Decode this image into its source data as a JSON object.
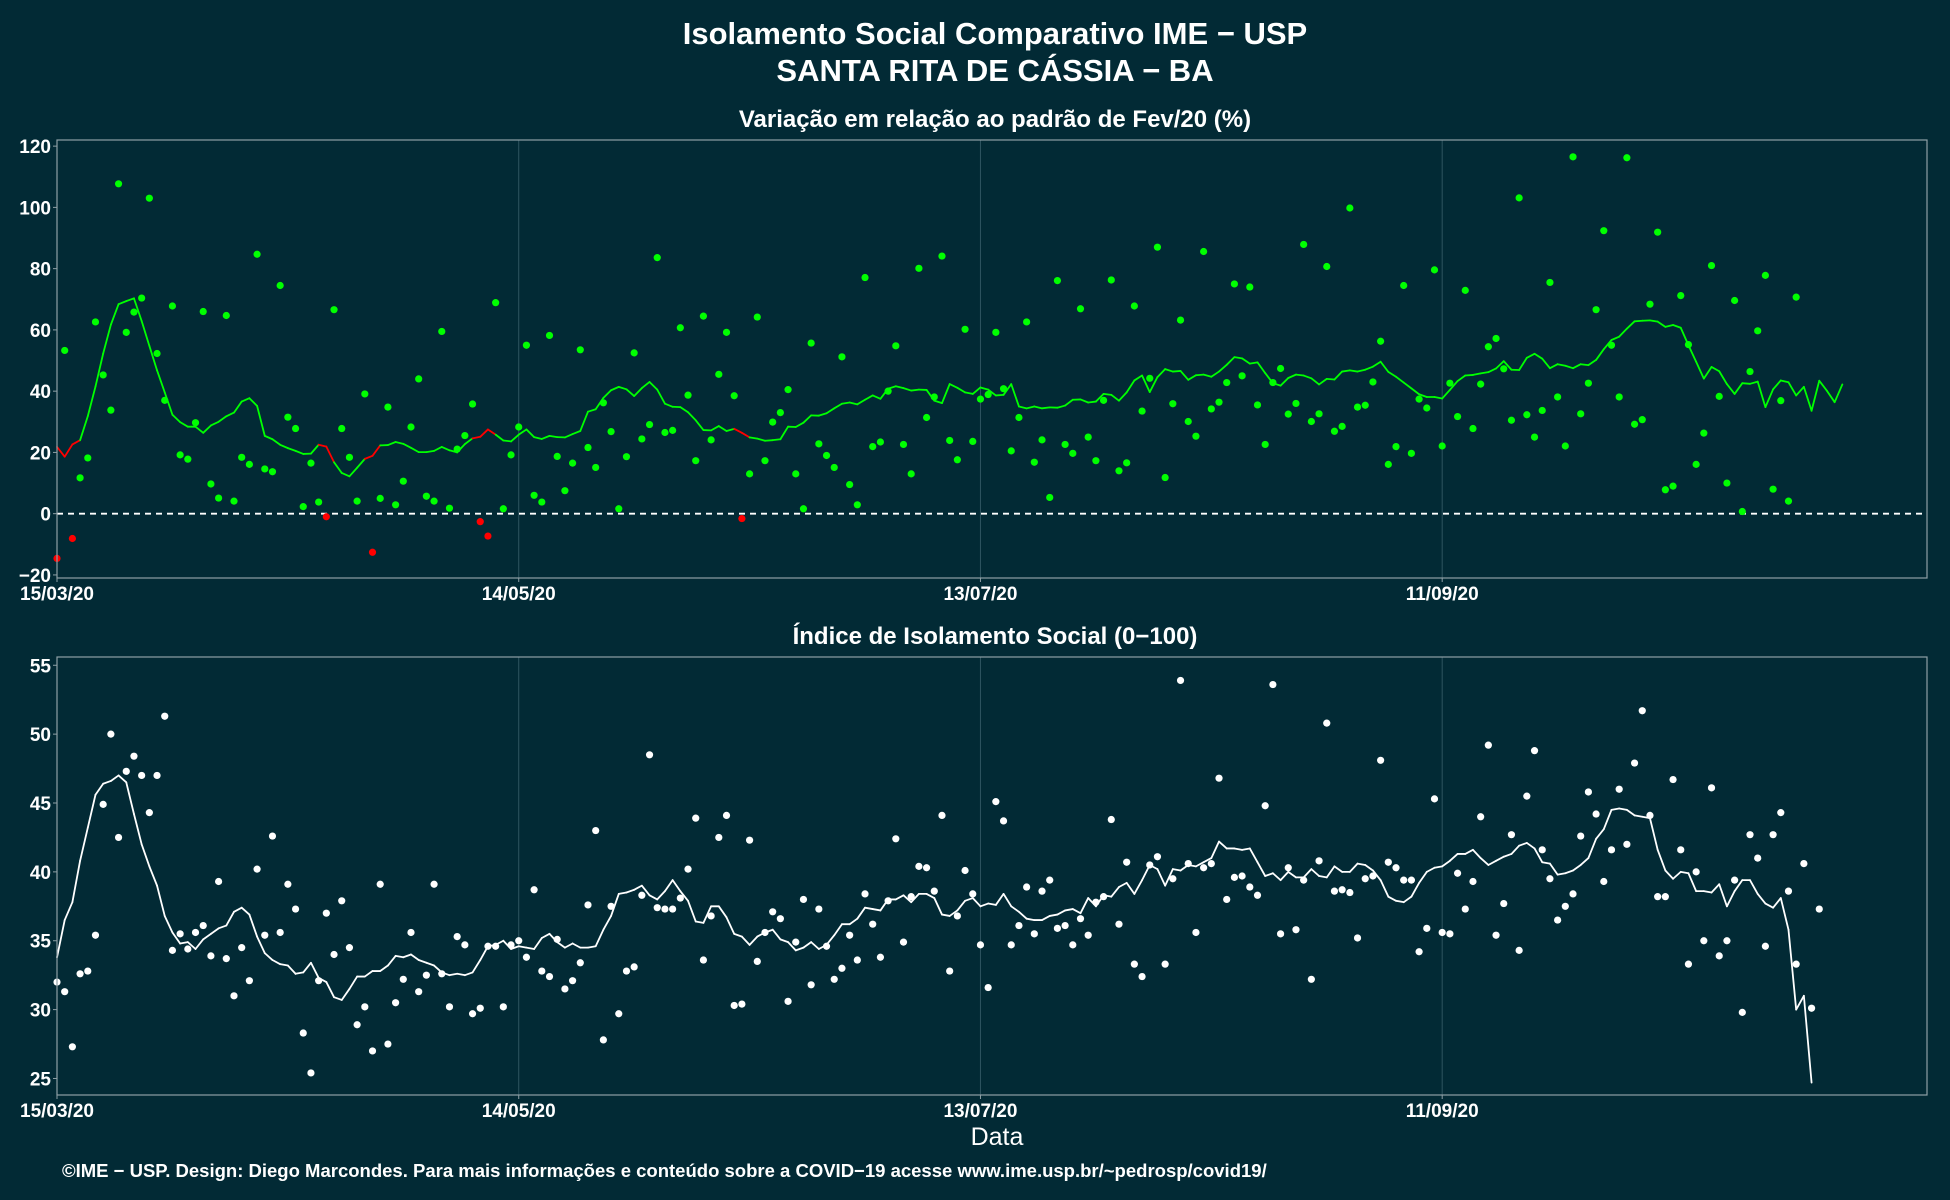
{
  "header": {
    "title_line1": "Isolamento Social Comparativo IME − USP",
    "title_line2": "SANTA RITA DE CÁSSIA − BA"
  },
  "footer": {
    "credit": "©IME − USP. Design: Diego Marcondes. Para mais informações e conteúdo sobre a COVID−19 acesse www.ime.usp.br/~pedrosp/covid19/"
  },
  "colors": {
    "background": "#022a35",
    "positive": "#00ff00",
    "negative": "#ff0000",
    "index": "#ffffff",
    "grid": "#2f5560"
  },
  "chart_data": [
    {
      "type": "scatter",
      "title": "Variação em relação ao padrão de Fev/20 (%)",
      "xlabel": "",
      "ylabel": "",
      "x_start": "15/03/20",
      "x_count": 244,
      "x_ticks": [
        "15/03/20",
        "14/05/20",
        "13/07/20",
        "11/09/20"
      ],
      "ylim": [
        -21,
        122
      ],
      "y_ticks": [
        -20,
        0,
        20,
        40,
        60,
        80,
        100,
        120
      ],
      "reference_line": 0,
      "grid": true,
      "series": [
        {
          "kind": "daily-points",
          "values": [
            -14.6,
            53.3,
            -8.1,
            11.7,
            18.2,
            62.6,
            45.3,
            33.8,
            107.7,
            59.2,
            65.8,
            70.4,
            103.0,
            52.3,
            37.0,
            67.8,
            19.2,
            17.8,
            29.7,
            66.0,
            9.7,
            5.1,
            64.7,
            4.1,
            18.4,
            16.1,
            84.7,
            14.6,
            13.7,
            74.5,
            31.5,
            27.8,
            2.3,
            16.5,
            3.8,
            -1.0,
            66.6,
            27.8,
            18.4,
            4.1,
            39.1,
            -12.6,
            5.0,
            34.8,
            2.9,
            10.6,
            28.3,
            44.0,
            5.7,
            4.1,
            59.5,
            1.8,
            21.1,
            25.5,
            35.8,
            -2.6,
            -7.3,
            68.9,
            1.6,
            19.2,
            28.3,
            55.0,
            6.0,
            3.8,
            58.2,
            18.7,
            7.5,
            16.5,
            53.5,
            21.6,
            15.1,
            36.2,
            26.8,
            1.6,
            18.6,
            52.5,
            24.4,
            29.1,
            83.6,
            26.5,
            27.2,
            60.7,
            38.7,
            17.3,
            64.5,
            24.1,
            45.5,
            59.2,
            38.5,
            -1.6,
            13.0,
            64.2,
            17.3,
            29.9,
            33.0,
            40.5,
            13.0,
            1.6,
            55.7,
            22.8,
            19.0,
            15.1,
            51.2,
            9.5,
            2.9,
            77.1,
            21.9,
            23.4,
            40.0,
            54.8,
            22.6,
            13.0,
            80.1,
            31.4,
            38.1,
            84.1,
            23.9,
            17.6,
            60.2,
            23.6,
            37.4,
            38.9,
            59.2,
            40.8,
            20.5,
            31.4,
            62.6,
            16.8,
            24.1,
            5.3,
            76.1,
            22.6,
            19.7,
            66.9,
            25.0,
            17.3,
            37.0,
            76.3,
            14.0,
            16.6,
            67.8,
            33.5,
            44.2,
            87.0,
            11.8,
            35.9,
            63.2,
            30.1,
            25.3,
            85.6,
            34.2,
            36.4,
            42.8,
            75.0,
            45.0,
            74.0,
            35.5,
            22.6,
            42.8,
            47.4,
            32.5,
            36.0,
            87.9,
            30.1,
            32.6,
            80.7,
            26.9,
            28.5,
            99.8,
            34.8,
            35.4,
            43.0,
            56.3,
            16.1,
            21.9,
            74.5,
            19.7,
            37.4,
            34.5,
            79.6,
            22.1,
            42.6,
            31.7,
            72.9,
            27.8,
            42.3,
            54.5,
            57.2,
            47.3,
            30.5,
            103.1,
            32.3,
            25.0,
            33.7,
            75.5,
            38.1,
            22.1,
            116.5,
            32.6,
            42.6,
            66.6,
            92.4,
            55.0,
            38.1,
            116.2,
            29.2,
            30.7,
            68.4,
            91.9,
            7.8,
            9.0,
            71.2,
            55.2,
            16.1,
            26.3,
            81.0,
            38.3,
            10.0,
            69.6,
            0.7,
            46.4,
            59.7,
            77.8,
            8.0,
            36.9,
            4.1,
            70.7
          ],
          "note": "points below 0 drawn red, others green"
        },
        {
          "kind": "moving-average",
          "values": [
            21.8,
            18.6,
            22.6,
            24.0,
            31.8,
            41.5,
            52.3,
            61.7,
            68.4,
            69.4,
            70.3,
            62.9,
            54.8,
            46.8,
            39.6,
            32.3,
            29.9,
            28.4,
            28.4,
            26.4,
            28.8,
            30.0,
            31.8,
            33.0,
            36.6,
            37.7,
            35.2,
            25.4,
            24.3,
            22.5,
            21.4,
            20.5,
            19.5,
            19.6,
            22.5,
            21.9,
            16.8,
            13.3,
            12.2,
            15.0,
            17.9,
            18.9,
            22.3,
            22.4,
            23.4,
            22.8,
            21.5,
            20.1,
            20.1,
            20.5,
            21.8,
            20.7,
            20.0,
            22.7,
            24.6,
            25.1,
            27.5,
            25.8,
            23.9,
            23.6,
            25.8,
            27.5,
            25.0,
            24.4,
            25.4,
            25.0,
            24.9,
            26.0,
            27.0,
            33.3,
            34.1,
            37.8,
            40.3,
            41.4,
            40.6,
            38.4,
            41.0,
            43.0,
            40.5,
            35.9,
            34.9,
            34.8,
            33.1,
            30.5,
            27.3,
            27.2,
            28.6,
            27.0,
            27.7,
            26.4,
            24.9,
            24.5,
            23.8,
            24.0,
            24.3,
            28.4,
            28.3,
            29.7,
            32.1,
            32.0,
            32.8,
            34.4,
            35.9,
            36.3,
            35.7,
            37.2,
            38.6,
            37.5,
            40.8,
            41.6,
            41.0,
            40.2,
            40.5,
            40.4,
            36.9,
            36.1,
            42.3,
            41.1,
            39.6,
            39.1,
            41.2,
            40.5,
            38.6,
            38.8,
            42.3,
            35.0,
            34.4,
            35.0,
            34.4,
            34.7,
            34.6,
            35.3,
            37.2,
            37.3,
            36.3,
            36.6,
            39.1,
            38.8,
            36.9,
            39.6,
            43.5,
            45.1,
            39.7,
            44.6,
            47.2,
            46.4,
            46.6,
            43.7,
            45.2,
            45.4,
            44.7,
            46.4,
            48.6,
            51.1,
            50.7,
            49.0,
            49.4,
            45.9,
            42.6,
            41.8,
            44.3,
            45.4,
            45.1,
            44.2,
            42.2,
            44.0,
            43.8,
            46.4,
            46.8,
            46.4,
            47.0,
            48.0,
            49.6,
            46.3,
            44.7,
            42.8,
            40.9,
            39.0,
            38.1,
            38.1,
            37.6,
            40.4,
            43.3,
            45.1,
            45.3,
            45.8,
            46.2,
            47.4,
            49.8,
            47.0,
            46.9,
            50.9,
            52.2,
            50.6,
            47.5,
            48.8,
            48.3,
            47.5,
            48.8,
            48.5,
            50.2,
            53.7,
            56.7,
            57.8,
            60.4,
            62.8,
            63.0,
            63.1,
            62.7,
            61.0,
            61.6,
            60.7,
            55.0,
            49.6,
            44.1,
            47.9,
            46.5,
            42.3,
            39.1,
            42.6,
            42.4,
            43.1,
            34.8,
            40.6,
            43.5,
            42.9,
            38.6,
            41.4,
            33.6,
            43.4,
            40.1,
            36.4,
            42.2
          ],
          "note": "7-day average; red segments where daily below 0"
        }
      ]
    },
    {
      "type": "scatter",
      "title": "Índice de Isolamento Social (0−100)",
      "xlabel": "Data",
      "ylabel": "",
      "x_start": "15/03/20",
      "x_count": 244,
      "x_ticks": [
        "15/03/20",
        "14/05/20",
        "13/07/20",
        "11/09/20"
      ],
      "ylim": [
        23.8,
        55.6
      ],
      "y_ticks": [
        25,
        30,
        35,
        40,
        45,
        50,
        55
      ],
      "grid": true,
      "series": [
        {
          "kind": "daily-points",
          "values": [
            32.0,
            31.3,
            27.3,
            32.6,
            32.8,
            35.4,
            44.9,
            50.0,
            42.5,
            47.3,
            48.4,
            47.0,
            44.3,
            47.0,
            51.3,
            34.3,
            35.5,
            34.4,
            35.6,
            36.1,
            33.9,
            39.3,
            33.7,
            31.0,
            34.5,
            32.1,
            40.2,
            35.4,
            42.6,
            35.6,
            39.1,
            37.3,
            28.3,
            25.4,
            32.1,
            37.0,
            34.0,
            37.9,
            34.5,
            28.9,
            30.2,
            27.0,
            39.1,
            27.5,
            30.5,
            32.2,
            35.6,
            31.3,
            32.5,
            39.1,
            32.6,
            30.2,
            35.3,
            34.7,
            29.7,
            30.1,
            34.6,
            34.6,
            30.2,
            34.7,
            35.0,
            33.8,
            38.7,
            32.8,
            32.4,
            35.1,
            31.5,
            32.1,
            33.4,
            37.6,
            43.0,
            27.8,
            37.5,
            29.7,
            32.8,
            33.1,
            38.3,
            48.5,
            37.4,
            37.3,
            37.3,
            38.1,
            40.2,
            43.9,
            33.6,
            36.8,
            42.5,
            44.1,
            30.3,
            30.4,
            42.3,
            33.5,
            35.6,
            37.1,
            36.6,
            30.6,
            34.9,
            38.0,
            31.8,
            37.3,
            34.6,
            32.2,
            33.0,
            35.4,
            33.6,
            38.4,
            36.2,
            33.8,
            37.9,
            42.4,
            34.9,
            38.2,
            40.4,
            40.3,
            38.6,
            44.1,
            32.8,
            36.8,
            40.1,
            38.4,
            34.7,
            31.6,
            45.1,
            43.7,
            34.7,
            36.1,
            38.9,
            35.5,
            38.6,
            39.4,
            35.9,
            36.1,
            34.7,
            36.6,
            35.4,
            37.8,
            38.2,
            43.8,
            36.2,
            40.7,
            33.3,
            32.4,
            40.5,
            41.1,
            33.3,
            39.5,
            53.9,
            40.6,
            35.6,
            40.3,
            40.6,
            46.8,
            38.0,
            39.6,
            39.7,
            38.9,
            38.3,
            44.8,
            53.6,
            35.5,
            40.3,
            35.8,
            39.4,
            32.2,
            40.8,
            50.8,
            38.6,
            38.7,
            38.5,
            35.2,
            39.5,
            39.7,
            48.1,
            40.7,
            40.3,
            39.4,
            39.4,
            34.2,
            35.9,
            45.3,
            35.6,
            35.5,
            39.9,
            37.3,
            39.3,
            44.0,
            49.2,
            35.4,
            37.7,
            42.7,
            34.3,
            45.5,
            48.8,
            41.6,
            39.5,
            36.5,
            37.5,
            38.4,
            42.6,
            45.8,
            44.2,
            39.3,
            41.6,
            46.0,
            42.0,
            47.9,
            51.7,
            44.1,
            38.2,
            38.2,
            46.7,
            41.6,
            33.3,
            40.0,
            35.0,
            46.1,
            33.9,
            35.0,
            39.4,
            29.8,
            42.7,
            41.0,
            34.6,
            42.7,
            44.3,
            38.6,
            33.3,
            40.6,
            30.1,
            37.3
          ],
          "note": "daily index points"
        },
        {
          "kind": "moving-average",
          "values": [
            33.8,
            36.5,
            37.8,
            40.8,
            43.2,
            45.6,
            46.4,
            46.6,
            47.0,
            46.5,
            44.2,
            42.0,
            40.4,
            39.0,
            36.8,
            35.6,
            34.8,
            34.9,
            34.4,
            35.1,
            35.5,
            35.9,
            36.1,
            37.1,
            37.4,
            36.9,
            35.3,
            34.1,
            33.6,
            33.3,
            33.2,
            32.6,
            32.7,
            33.4,
            32.3,
            32.0,
            30.9,
            30.7,
            31.5,
            32.4,
            32.4,
            32.8,
            32.8,
            33.2,
            33.9,
            33.8,
            34.0,
            33.6,
            33.4,
            33.2,
            32.7,
            32.5,
            32.6,
            32.5,
            32.7,
            33.6,
            34.6,
            34.7,
            35.0,
            34.4,
            34.6,
            34.5,
            34.4,
            35.2,
            35.5,
            34.9,
            34.5,
            34.8,
            34.5,
            34.5,
            34.6,
            35.8,
            36.8,
            38.4,
            38.5,
            38.7,
            39.0,
            38.3,
            38.0,
            38.6,
            39.4,
            38.6,
            37.9,
            36.4,
            36.3,
            37.5,
            37.5,
            36.7,
            35.5,
            35.3,
            34.7,
            35.3,
            35.6,
            35.8,
            35.1,
            34.9,
            34.3,
            34.5,
            34.9,
            34.4,
            34.7,
            35.4,
            36.2,
            36.2,
            36.6,
            37.4,
            37.3,
            37.2,
            38.0,
            38.0,
            38.3,
            37.8,
            38.4,
            38.4,
            38.1,
            36.9,
            36.8,
            37.2,
            37.9,
            38.1,
            37.5,
            37.7,
            37.6,
            38.4,
            37.5,
            37.1,
            36.6,
            36.5,
            36.5,
            36.8,
            36.9,
            37.2,
            37.3,
            37.0,
            38.1,
            37.5,
            38.3,
            38.2,
            38.9,
            39.2,
            38.4,
            39.4,
            40.5,
            40.2,
            39.0,
            40.2,
            40.1,
            40.5,
            40.4,
            40.7,
            41.0,
            42.2,
            41.7,
            41.7,
            41.6,
            41.7,
            40.7,
            39.7,
            39.9,
            39.4,
            40.0,
            39.6,
            39.6,
            40.2,
            39.7,
            39.6,
            40.4,
            40.0,
            40.0,
            40.6,
            40.5,
            40.1,
            39.4,
            38.2,
            37.9,
            37.8,
            38.2,
            39.2,
            40.0,
            40.3,
            40.4,
            40.8,
            41.3,
            41.3,
            41.6,
            41.0,
            40.5,
            40.8,
            41.1,
            41.3,
            41.9,
            42.1,
            41.7,
            40.7,
            40.6,
            39.8,
            39.9,
            40.1,
            40.5,
            41.0,
            42.4,
            43.1,
            44.5,
            44.6,
            44.5,
            44.1,
            44.0,
            43.9,
            41.6,
            40.1,
            39.5,
            40.0,
            39.9,
            38.6,
            38.6,
            38.5,
            39.1,
            37.5,
            38.6,
            39.4,
            39.4,
            38.4,
            37.7,
            37.4,
            38.1,
            35.8,
            30.0,
            31.0,
            24.7
          ],
          "note": "7-day average"
        }
      ]
    }
  ]
}
